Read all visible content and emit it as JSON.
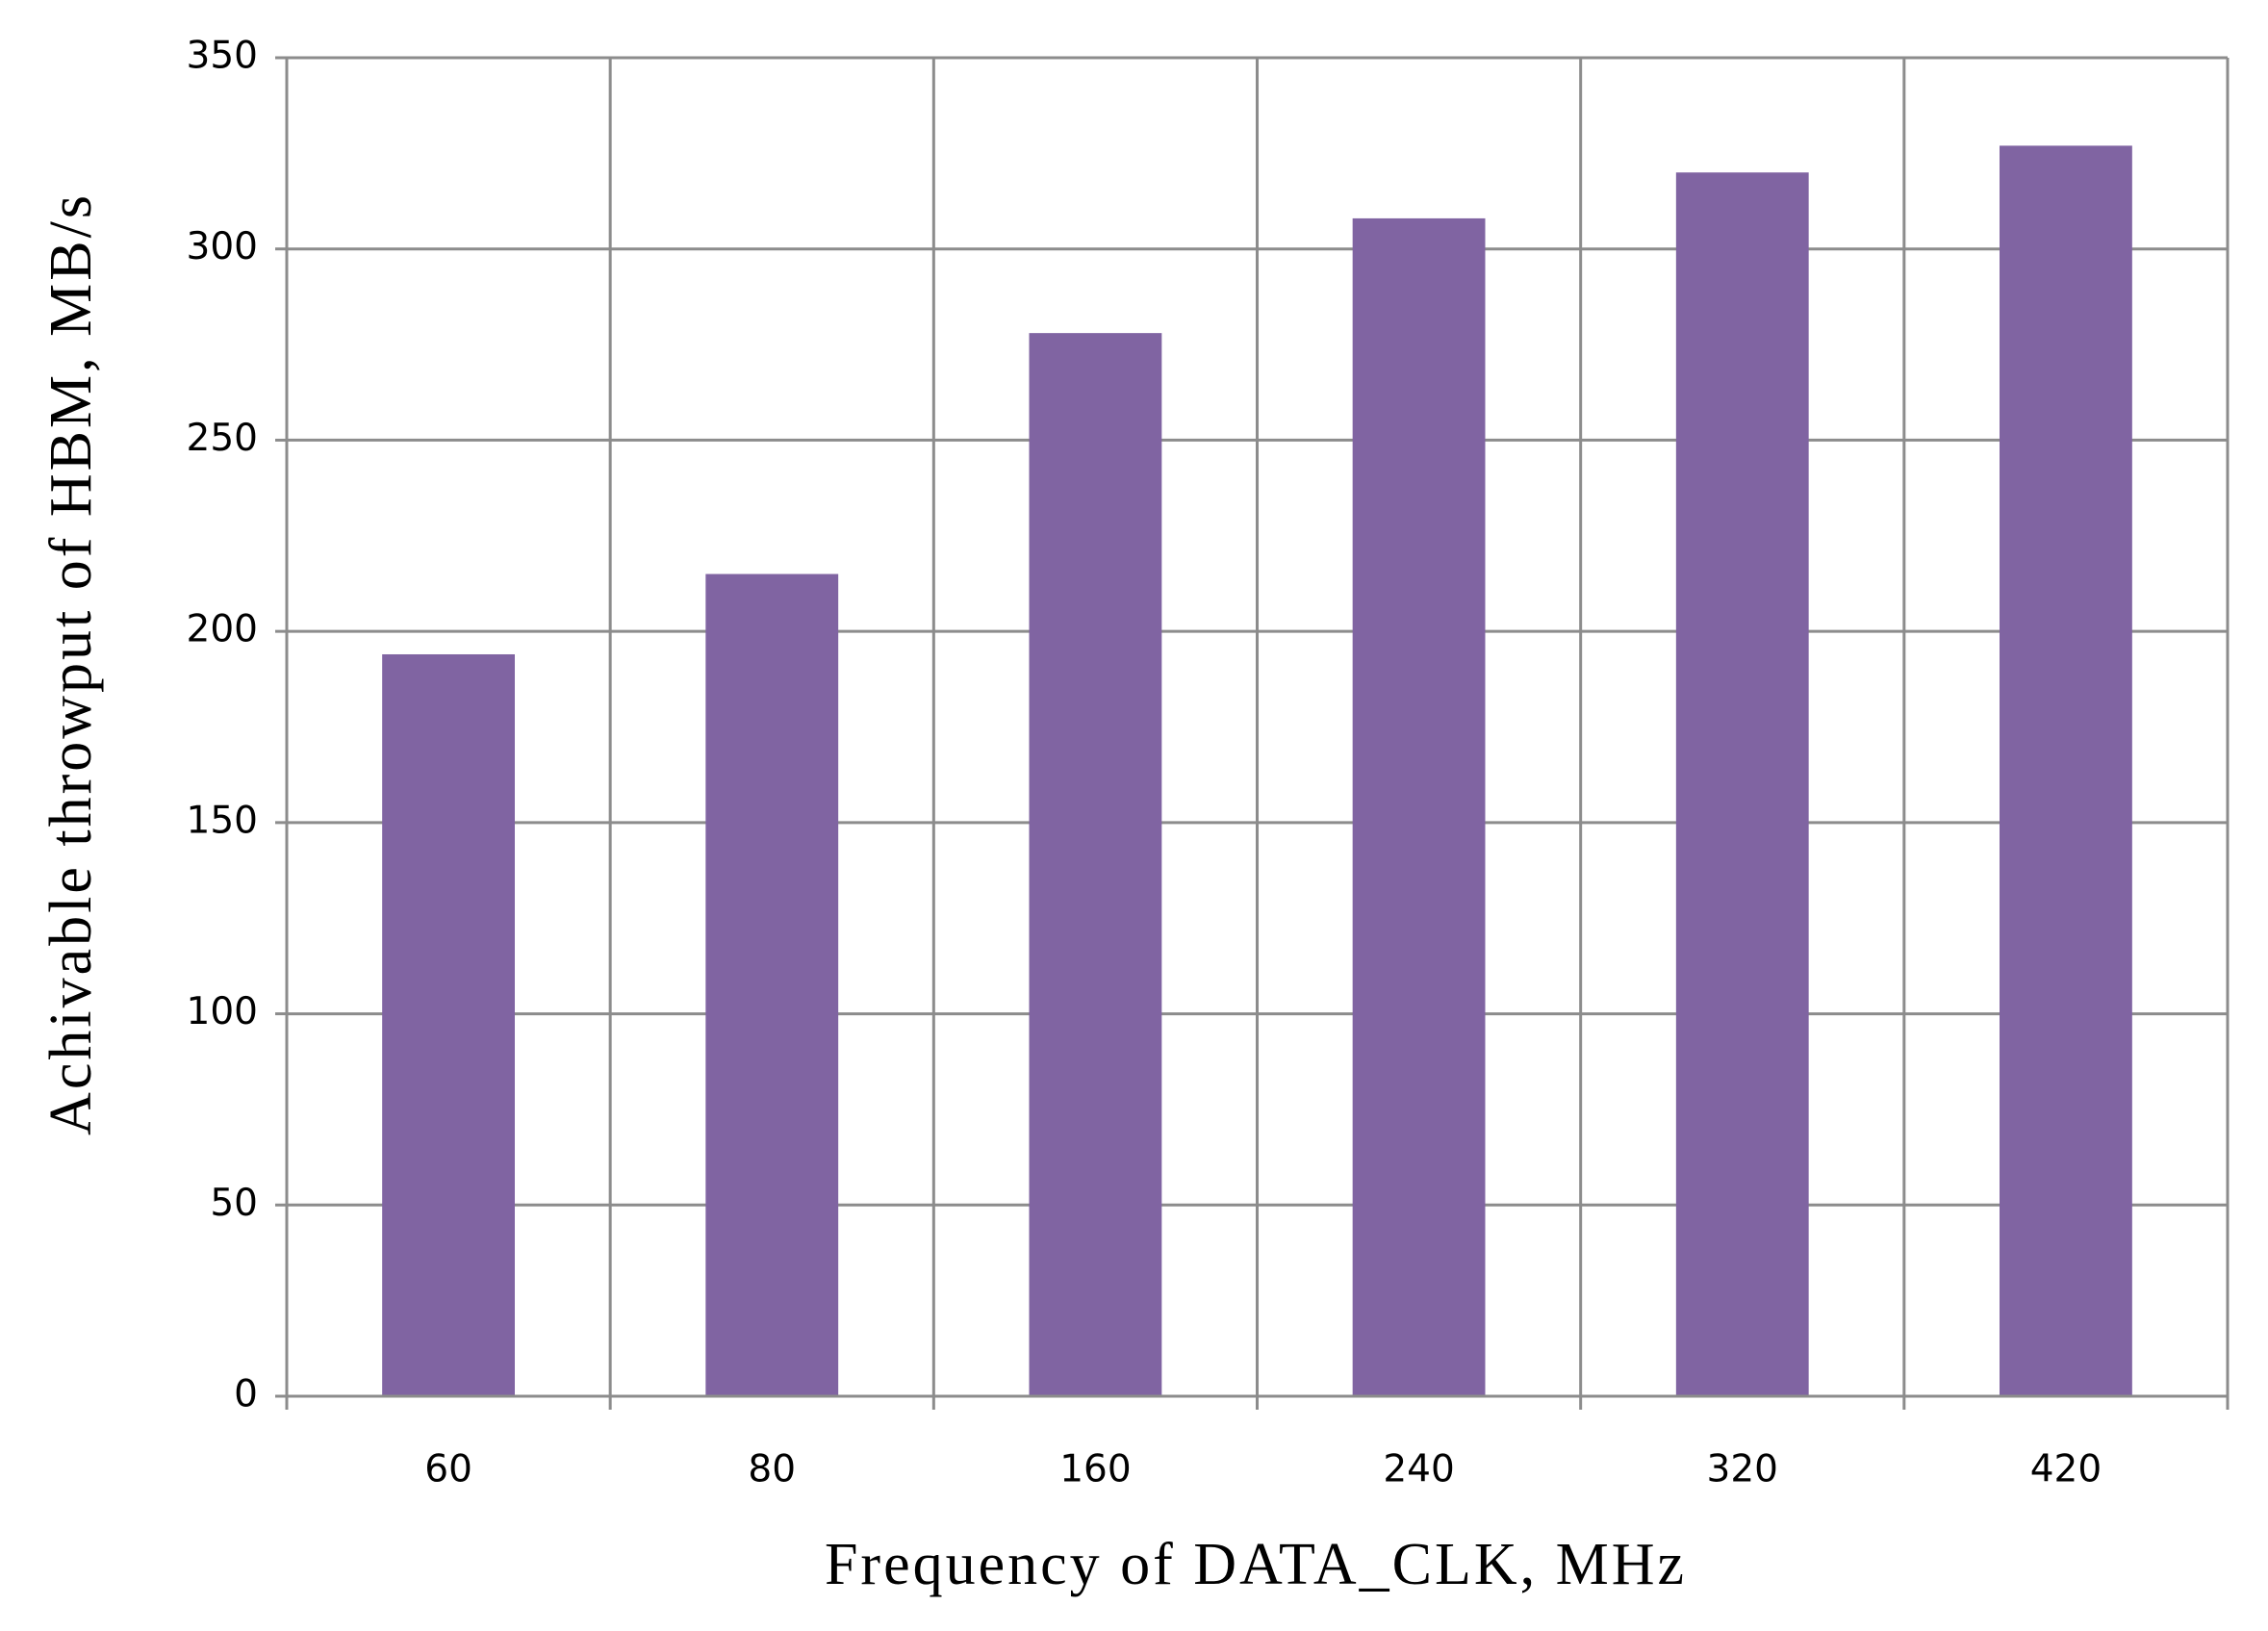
{
  "chart_data": {
    "type": "bar",
    "x_label": "Frequency of  DATA_CLK, MHz",
    "y_label": "Achivable throwput  of HBM,  MB/s",
    "categories": [
      "60",
      "80",
      "160",
      "240",
      "320",
      "420"
    ],
    "values": [
      194,
      215,
      278,
      308,
      320,
      327
    ],
    "color": "#8064a2",
    "ylim": [
      0,
      350
    ],
    "yticks": [
      0,
      50,
      100,
      150,
      200,
      250,
      300,
      350
    ],
    "grid": true
  }
}
